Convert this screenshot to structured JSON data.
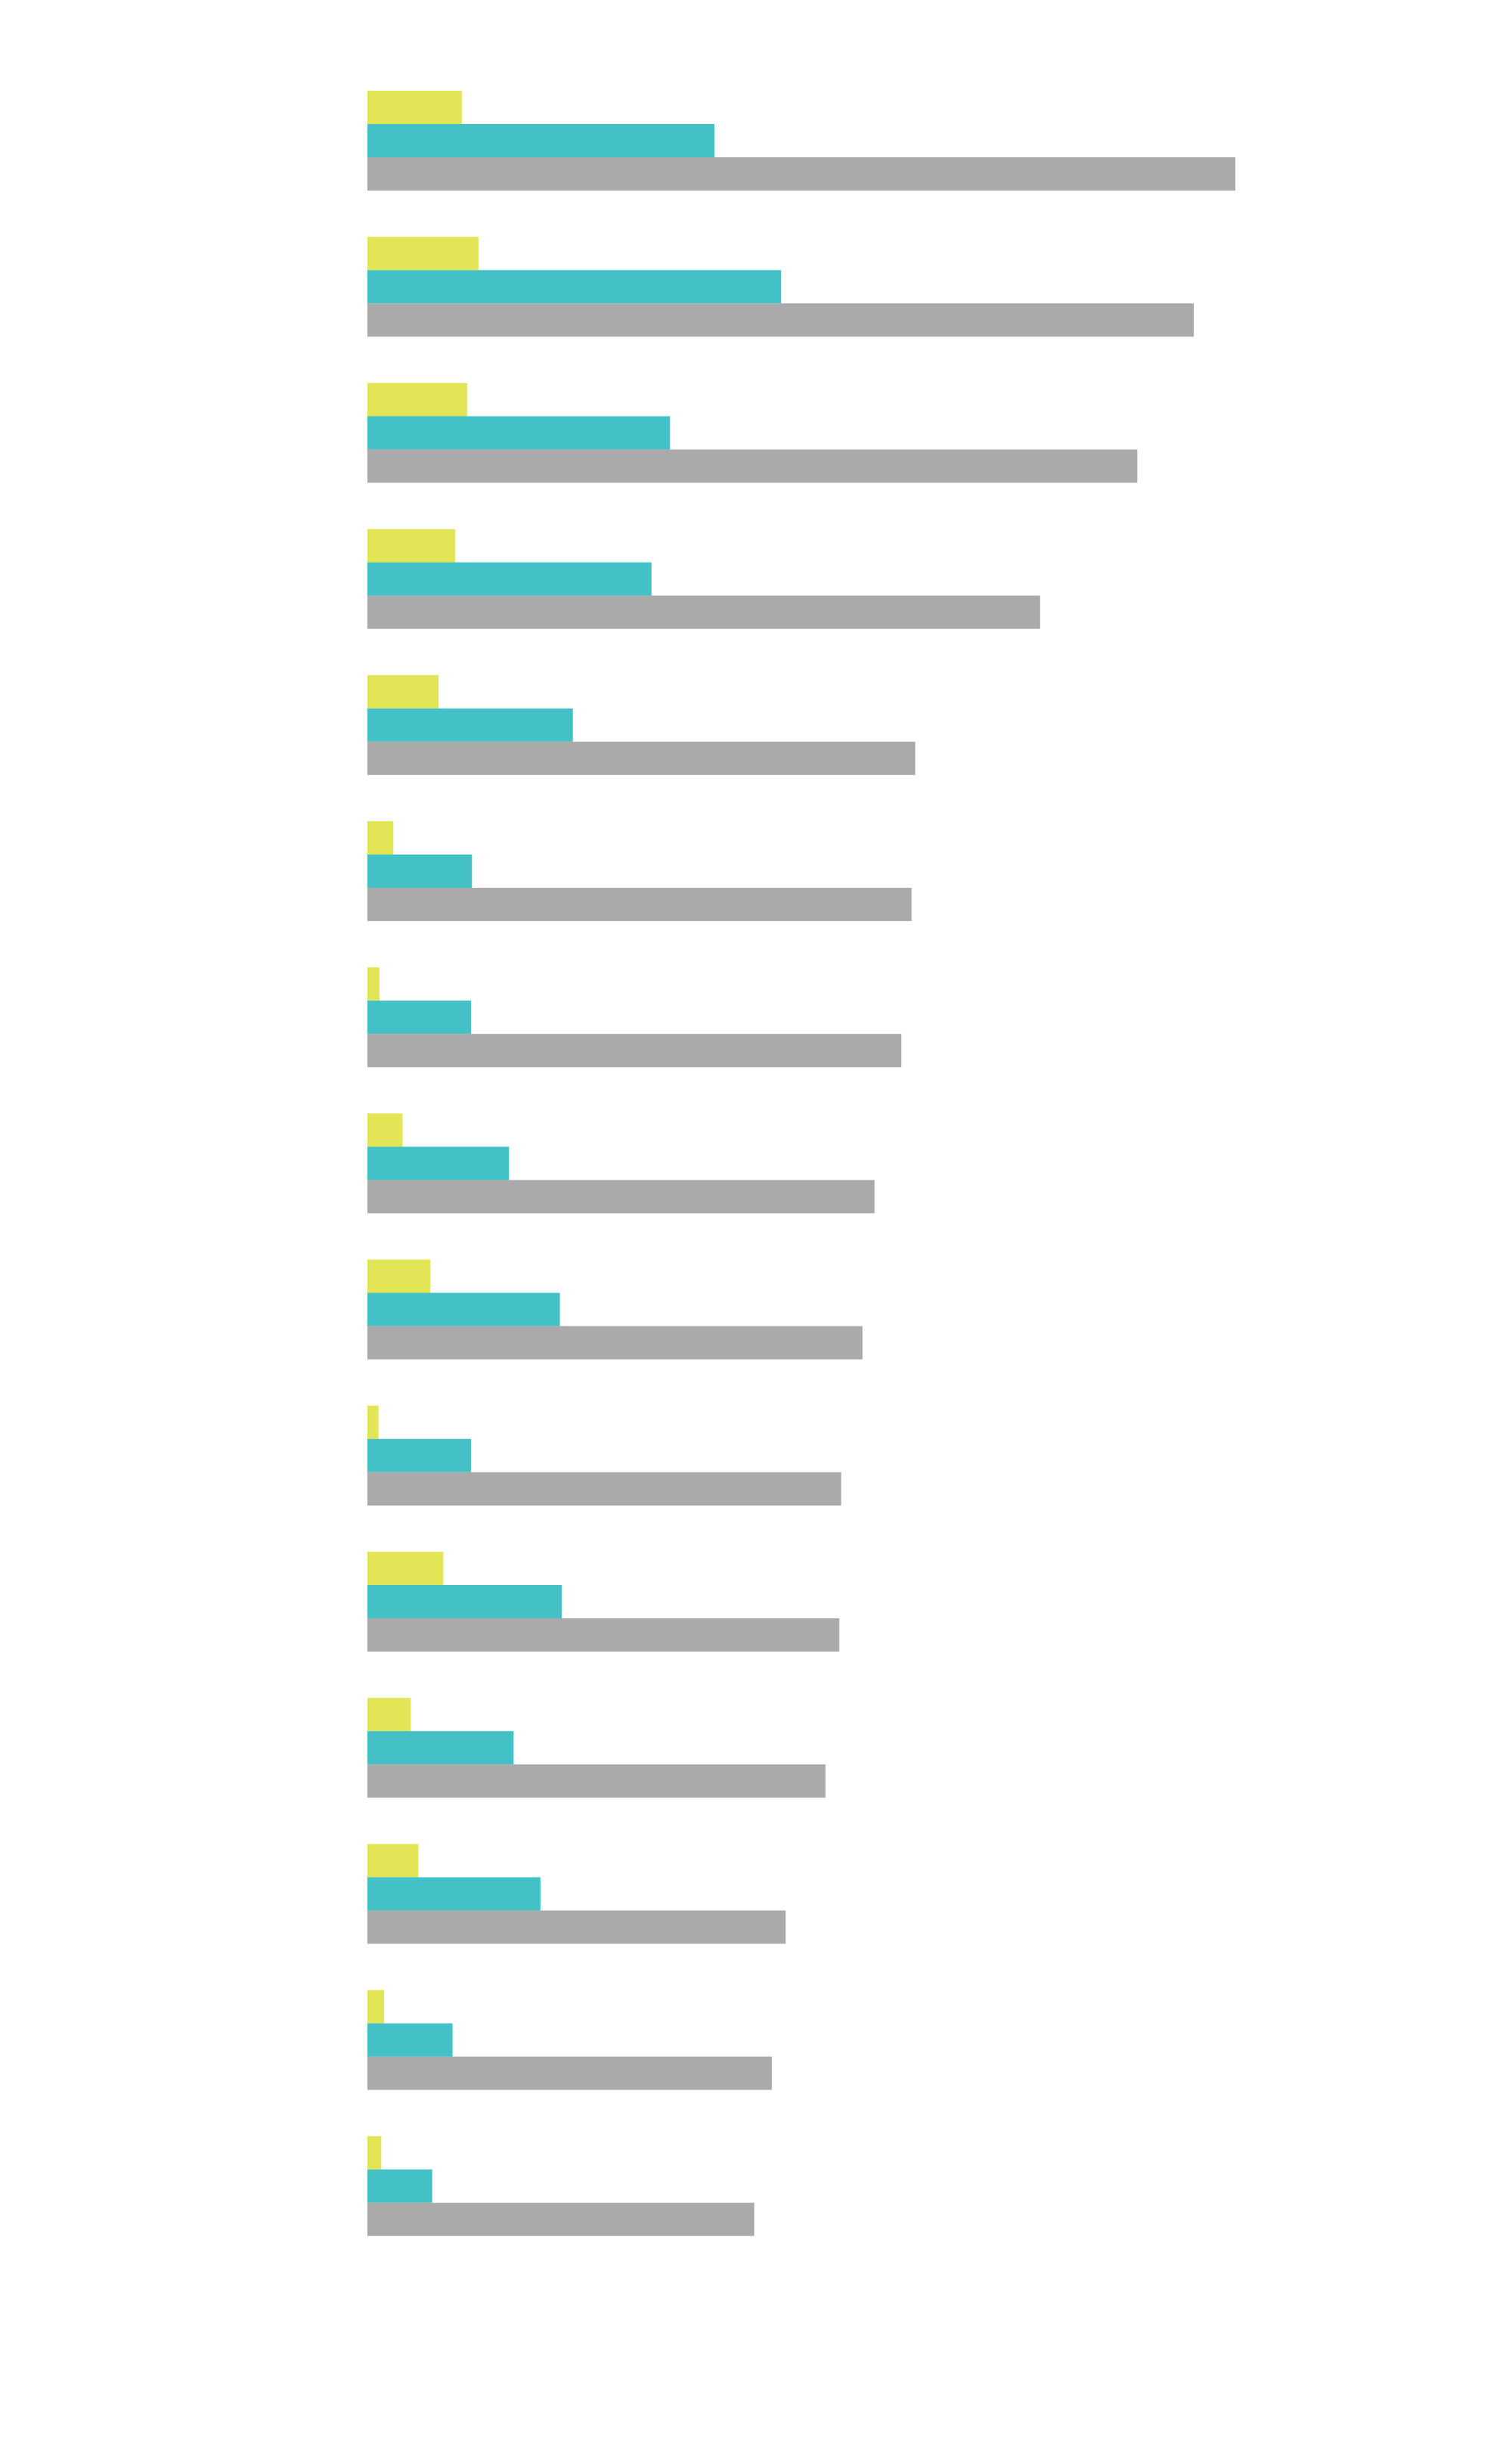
{
  "chart_data": {
    "type": "barh",
    "categories": [
      null,
      null,
      null,
      null,
      null,
      null,
      null,
      null,
      null,
      null,
      null,
      null,
      null,
      null,
      null
    ],
    "series": [
      {
        "color": "#e2e656",
        "values": [
          10.2,
          12,
          10.8,
          9.5,
          7.7,
          2.8,
          1.3,
          3.8,
          6.8,
          1.2,
          8.2,
          4.7,
          5.5,
          1.8,
          1.5
        ]
      },
      {
        "color": "#44c1c7",
        "values": [
          37.5,
          44.7,
          32.7,
          30.7,
          22.2,
          11.3,
          11.2,
          15.3,
          20.8,
          11.2,
          21,
          15.8,
          18.7,
          9.2,
          7
        ]
      },
      {
        "color": "#aaaaab",
        "values": [
          93.8,
          89.3,
          83.2,
          72.7,
          59.2,
          58.8,
          57.7,
          54.8,
          53.5,
          51.2,
          51,
          49.5,
          45.2,
          43.7,
          41.8
        ]
      }
    ],
    "xlim": [
      0,
      100
    ]
  }
}
